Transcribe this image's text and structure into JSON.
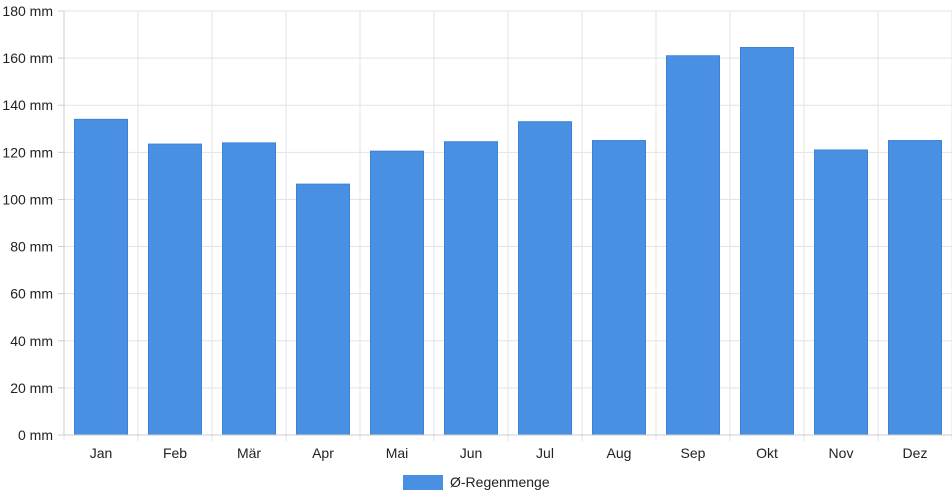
{
  "chart_data": {
    "type": "bar",
    "categories": [
      "Jan",
      "Feb",
      "Mär",
      "Apr",
      "Mai",
      "Jun",
      "Jul",
      "Aug",
      "Sep",
      "Okt",
      "Nov",
      "Dez"
    ],
    "series": [
      {
        "name": "Ø-Regenmenge",
        "color": "#4a90e2",
        "values": [
          134,
          123.5,
          124,
          106.5,
          120.5,
          124.5,
          133,
          125,
          161,
          164.5,
          121,
          125
        ]
      }
    ],
    "ylim": [
      0,
      180
    ],
    "yticks": [
      0,
      20,
      40,
      60,
      80,
      100,
      120,
      140,
      160,
      180
    ],
    "y_unit": "mm",
    "grid": true,
    "legend_position": "bottom"
  }
}
